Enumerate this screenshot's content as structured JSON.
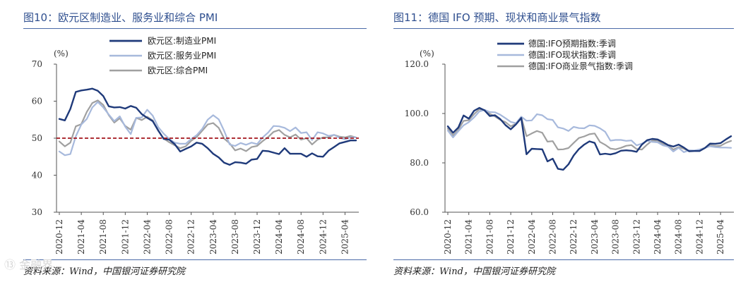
{
  "colors": {
    "title": "#2f4f8f",
    "dark_blue": "#1f3a7a",
    "light_blue": "#a7b9dc",
    "gray": "#a0a0a0",
    "ref_red": "#a3131b"
  },
  "watermark": "⑬ 金融界",
  "chart_data": [
    {
      "type": "line",
      "title": "图10：欧元区制造业、服务业和综合 PMI",
      "unit_label": "(%)",
      "source": "资料来源：Wind，中国银河证券研究院",
      "ylim": [
        30,
        70
      ],
      "yticks": [
        "70",
        "60",
        "50",
        "40",
        "30"
      ],
      "xlabels": [
        "2020-12",
        "2021-04",
        "2021-08",
        "2021-12",
        "2022-04",
        "2022-08",
        "2022-12",
        "2023-04",
        "2023-08",
        "2023-12",
        "2024-04",
        "2024-08",
        "2024-12",
        "2025-04"
      ],
      "x_start": 0,
      "x_end": 54,
      "reference_line": 50,
      "series": [
        {
          "name": "欧元区:制造业PMI",
          "color": "#1f3a7a",
          "width": 2.4,
          "values": [
            55.2,
            54.8,
            57.9,
            62.5,
            62.9,
            63.1,
            63.4,
            62.8,
            61.4,
            58.6,
            58.3,
            58.4,
            58.0,
            58.7,
            58.2,
            56.5,
            55.5,
            54.6,
            52.1,
            49.8,
            49.6,
            48.4,
            46.4,
            47.1,
            47.8,
            48.8,
            48.5,
            47.3,
            45.8,
            44.8,
            43.4,
            42.8,
            43.5,
            43.4,
            43.1,
            44.2,
            44.4,
            46.6,
            46.5,
            46.1,
            45.7,
            47.3,
            45.8,
            45.8,
            45.8,
            45.0,
            45.9,
            45.1,
            45.0,
            46.6,
            47.6,
            48.6,
            49.0,
            49.4,
            49.4
          ]
        },
        {
          "name": "欧元区:服务业PMI",
          "color": "#a7b9dc",
          "width": 2.2,
          "values": [
            46.4,
            45.4,
            45.7,
            50.5,
            53.7,
            55.2,
            58.3,
            59.8,
            58.3,
            56.4,
            54.6,
            55.9,
            53.1,
            51.1,
            55.5,
            55.6,
            57.7,
            56.1,
            53.0,
            51.2,
            49.8,
            48.8,
            48.5,
            48.5,
            49.8,
            50.8,
            52.5,
            55.0,
            56.2,
            55.1,
            52.0,
            48.3,
            47.9,
            48.7,
            48.2,
            48.8,
            48.4,
            50.2,
            51.5,
            53.3,
            53.2,
            52.8,
            51.9,
            52.9,
            51.4,
            51.6,
            49.5,
            51.6,
            51.3,
            50.6,
            50.9,
            50.1,
            49.7,
            50.2,
            50.2
          ]
        },
        {
          "name": "欧元区:综合PMI",
          "color": "#a0a0a0",
          "width": 2.2,
          "values": [
            49.1,
            47.8,
            48.8,
            53.2,
            53.8,
            57.1,
            59.5,
            60.2,
            59.0,
            56.2,
            54.2,
            55.4,
            53.3,
            52.3,
            55.5,
            54.9,
            55.8,
            54.8,
            52.0,
            49.9,
            48.9,
            48.1,
            47.3,
            47.8,
            49.3,
            50.3,
            52.0,
            53.7,
            54.1,
            52.8,
            49.9,
            48.6,
            46.7,
            47.2,
            46.5,
            47.6,
            47.9,
            49.2,
            50.3,
            51.7,
            52.2,
            50.9,
            50.2,
            51.0,
            49.6,
            50.0,
            48.3,
            49.6,
            50.2,
            50.2,
            50.9,
            50.4,
            50.2,
            50.6,
            50.2
          ]
        }
      ]
    },
    {
      "type": "line",
      "title": "图11：德国 IFO 预期、现状和商业景气指数",
      "unit_label": "(%)",
      "source": "资料来源：Wind，中国银河证券研究院",
      "ylim": [
        60,
        120
      ],
      "yticks": [
        "120.0",
        "100.0",
        "80.0",
        "60.0"
      ],
      "xlabels": [
        "2020-12",
        "2021-04",
        "2021-08",
        "2021-12",
        "2022-04",
        "2022-08",
        "2022-12",
        "2023-04",
        "2023-08",
        "2023-12",
        "2024-04",
        "2024-08",
        "2024-12",
        "2025-04"
      ],
      "x_start": 0,
      "x_end": 54,
      "series": [
        {
          "name": "德国:IFO预期指数:季调",
          "color": "#1f3a7a",
          "width": 2.4,
          "values": [
            94.8,
            92.2,
            94.3,
            99.2,
            97.9,
            101.1,
            102.3,
            101.3,
            99.0,
            99.3,
            97.7,
            95.3,
            93.6,
            95.6,
            98.2,
            83.5,
            85.7,
            85.6,
            85.5,
            80.6,
            81.7,
            77.6,
            77.2,
            79.4,
            83.0,
            85.6,
            87.4,
            88.7,
            88.1,
            83.4,
            83.7,
            83.4,
            83.9,
            84.9,
            85.1,
            84.9,
            84.5,
            87.4,
            89.2,
            89.7,
            89.5,
            88.4,
            87.2,
            86.6,
            87.4,
            86.2,
            84.7,
            84.8,
            84.8,
            86.0,
            87.8,
            87.7,
            88.0,
            89.5,
            90.8
          ]
        },
        {
          "name": "德国:IFO现状指数:季调",
          "color": "#a7b9dc",
          "width": 2.2,
          "values": [
            93.1,
            90.3,
            92.8,
            95.2,
            96.5,
            98.4,
            100.8,
            101.5,
            100.6,
            100.5,
            99.5,
            98.1,
            96.6,
            96.1,
            98.7,
            97.1,
            97.2,
            99.7,
            99.3,
            97.7,
            97.4,
            94.4,
            93.9,
            92.9,
            94.6,
            94.1,
            94.0,
            95.2,
            95.0,
            94.0,
            92.6,
            89.0,
            89.3,
            89.3,
            88.9,
            89.1,
            87.1,
            87.8,
            88.9,
            88.5,
            88.3,
            87.1,
            86.6,
            84.6,
            86.1,
            84.3,
            85.1,
            85.0,
            85.4,
            86.0,
            86.7,
            86.4,
            86.2,
            86.2,
            86.1
          ]
        },
        {
          "name": "德国:IFO商业景气指数:季调",
          "color": "#a0a0a0",
          "width": 2.2,
          "values": [
            93.9,
            91.1,
            93.4,
            97.0,
            97.3,
            99.7,
            101.7,
            101.3,
            99.9,
            98.8,
            97.4,
            96.5,
            94.8,
            95.9,
            98.5,
            90.8,
            91.9,
            92.9,
            92.2,
            88.6,
            88.8,
            85.4,
            85.5,
            86.0,
            88.1,
            90.1,
            90.7,
            91.6,
            91.9,
            88.5,
            87.3,
            85.8,
            85.5,
            86.1,
            86.9,
            87.2,
            85.6,
            85.4,
            87.4,
            89.1,
            89.0,
            87.6,
            87.0,
            85.4,
            86.4,
            85.7,
            84.7,
            84.9,
            85.3,
            86.1,
            87.2,
            86.8,
            86.9,
            88.1,
            88.9
          ]
        }
      ]
    }
  ]
}
